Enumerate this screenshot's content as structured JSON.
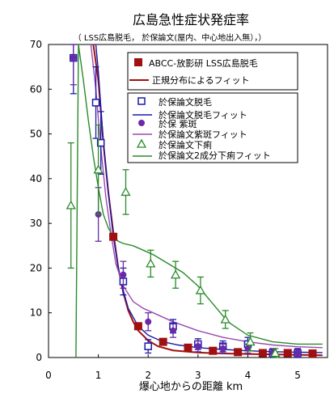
{
  "chart_data": {
    "type": "scatter",
    "title": "広島急性症状発症率",
    "subtitle": "（ LSS広島脱毛， 於保論文(屋内、中心地出入無），）",
    "xlabel": "爆心地からの距離  km",
    "ylabel": "",
    "xlim": [
      0,
      5.6
    ],
    "ylim": [
      0,
      70
    ],
    "x_ticks": [
      "0",
      "1",
      "2",
      "3",
      "4",
      "5"
    ],
    "y_ticks": [
      "0",
      "10",
      "20",
      "30",
      "40",
      "50",
      "60",
      "70"
    ],
    "legend_top": [
      {
        "label": "ABCC-放影研 LSS広島脱毛",
        "color": "#a01010",
        "marker": "square-filled"
      },
      {
        "label": "正規分布によるフィット",
        "color": "#a01010",
        "marker": "line"
      }
    ],
    "legend_bottom": [
      {
        "label": "於保論文脱毛",
        "color": "#1a1aa8",
        "marker": "square-open"
      },
      {
        "label": "於保論文脱毛フィット",
        "color": "#1a1aa8",
        "marker": "line"
      },
      {
        "label": "於保 紫斑",
        "color": "#6a2aa8",
        "marker": "circle-filled"
      },
      {
        "label": "於保論文紫斑フィット",
        "color": "#9a4ab0",
        "marker": "line"
      },
      {
        "label": "於保論文下痢",
        "color": "#2a8a2a",
        "marker": "triangle-open"
      },
      {
        "label": "於保論文2成分下痢フィット",
        "color": "#2a8a2a",
        "marker": "line"
      }
    ],
    "series": [
      {
        "name": "ABCC-放影研 LSS広島脱毛",
        "color": "#a01010",
        "marker": "square-filled",
        "x": [
          1.3,
          1.8,
          2.3,
          2.8,
          3.3,
          3.8,
          4.3,
          4.8,
          5.3
        ],
        "y": [
          27,
          7,
          3.5,
          2.2,
          1.5,
          1.2,
          1.0,
          1.0,
          0.9
        ]
      },
      {
        "name": "於保論文脱毛",
        "color": "#1a1aa8",
        "marker": "square-open",
        "x": [
          0.5,
          0.95,
          1.05,
          1.5,
          2.0,
          2.5,
          3.0,
          3.5,
          4.0,
          4.5,
          5.0
        ],
        "y": [
          67,
          57,
          48,
          17,
          2.5,
          7,
          3,
          2.5,
          3,
          1,
          1
        ],
        "err": [
          8,
          8,
          7,
          3,
          1.5,
          1.5,
          1.2,
          1.2,
          1.5,
          1,
          1
        ]
      },
      {
        "name": "於保 紫斑",
        "color": "#6a2aa8",
        "marker": "circle-filled",
        "x": [
          0.5,
          1.0,
          1.5,
          2.0,
          2.5,
          3.0,
          3.5,
          4.0,
          4.5,
          5.0
        ],
        "y": [
          67,
          32,
          18.5,
          8,
          6,
          2.5,
          2,
          2,
          1,
          1
        ],
        "err": [
          6,
          6,
          3,
          2,
          1.5,
          1.2,
          1,
          1,
          0.8,
          0.8
        ]
      },
      {
        "name": "於保論文下痢",
        "color": "#2a8a2a",
        "marker": "triangle-open",
        "x": [
          0.45,
          1.0,
          1.55,
          2.05,
          2.55,
          3.05,
          3.55,
          4.05,
          4.55
        ],
        "y": [
          34,
          42,
          37,
          21,
          18.5,
          15,
          8.5,
          3.5,
          1
        ],
        "err": [
          14,
          10,
          5,
          3,
          3,
          3,
          2,
          2,
          1
        ]
      }
    ],
    "fits": [
      {
        "name": "正規分布によるフィット",
        "color": "#a01010",
        "x": [
          0.9,
          1.0,
          1.1,
          1.2,
          1.3,
          1.4,
          1.5,
          1.6,
          1.7,
          1.8,
          2.0,
          2.2,
          2.5,
          3.0,
          3.5,
          4.0,
          4.5,
          5.0,
          5.5
        ],
        "y": [
          70,
          62,
          48,
          37,
          28,
          20,
          14.5,
          10.5,
          8,
          6,
          3.8,
          2.5,
          1.6,
          1.1,
          0.9,
          0.8,
          0.7,
          0.6,
          0.5
        ]
      },
      {
        "name": "於保論文脱毛フィット",
        "color": "#1a1aa8",
        "x": [
          0.95,
          1.0,
          1.1,
          1.2,
          1.3,
          1.4,
          1.5,
          1.6,
          1.8,
          2.0,
          2.3,
          2.6,
          3.0,
          3.5,
          4.0,
          4.5,
          5.0,
          5.5
        ],
        "y": [
          70,
          64,
          48,
          37,
          27,
          20,
          15,
          11,
          7,
          5,
          3.5,
          2.8,
          2.2,
          1.8,
          1.5,
          1.3,
          1.2,
          1.1
        ]
      },
      {
        "name": "於保論文紫斑フィット",
        "color": "#9a4ab0",
        "x": [
          0.85,
          0.95,
          1.05,
          1.15,
          1.25,
          1.35,
          1.5,
          1.7,
          1.9,
          2.1,
          2.5,
          3.0,
          3.5,
          4.0,
          4.5,
          5.0,
          5.5
        ],
        "y": [
          70,
          60,
          47,
          36,
          28,
          21,
          16,
          12.5,
          11,
          10,
          8,
          6,
          4.5,
          3.5,
          2.8,
          2.4,
          2.2
        ]
      },
      {
        "name": "於保論文2成分下痢フィット",
        "color": "#2a8a2a",
        "x": [
          0.55,
          0.6,
          0.7,
          0.8,
          0.9,
          1.0,
          1.1,
          1.2,
          1.3,
          1.4,
          1.5,
          1.7,
          1.9,
          2.1,
          2.4,
          2.7,
          3.0,
          3.3,
          3.6,
          4.0,
          4.5,
          5.0,
          5.5
        ],
        "y": [
          0,
          70,
          62,
          53,
          45,
          38,
          32,
          29,
          27,
          26,
          25.5,
          25,
          24,
          23,
          21,
          19,
          16,
          12,
          8,
          5,
          3.5,
          3,
          3
        ]
      }
    ],
    "grid": false,
    "legend_placement": "top-right"
  }
}
